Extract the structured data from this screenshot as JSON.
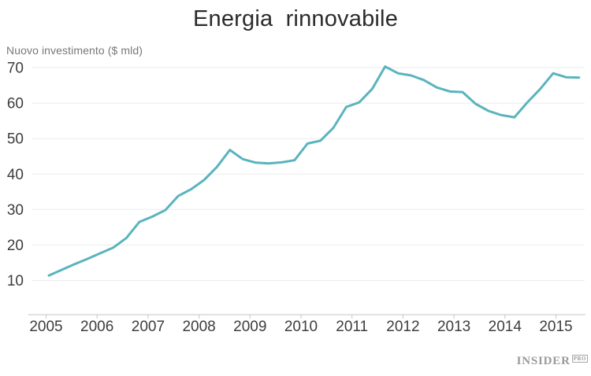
{
  "title": "Energia rinnovabile",
  "y_axis_label": "Nuovo investimento ($ mld)",
  "branding": {
    "name": "INSIDER",
    "suffix": "PRO"
  },
  "colors": {
    "line": "#5ab4bd",
    "grid": "#ebebeb",
    "axis": "#c6c6c6",
    "tick_text": "#3d3d3d",
    "title_text": "#2b2b2b",
    "subtitle_text": "#77787a",
    "logo_text": "#9a9a9a"
  },
  "chart_data": {
    "type": "line",
    "title": "Energia rinnovabile",
    "ylabel": "Nuovo investimento ($ mld)",
    "xlabel": "",
    "series_name": "Nuovo investimento ($ mld)",
    "legend": "none",
    "grid": "horizontal-only",
    "y_ticks": [
      10,
      20,
      30,
      40,
      50,
      60,
      70
    ],
    "ylim": [
      8,
      72
    ],
    "x_axis_tick_labels": [
      "2005",
      "2006",
      "2007",
      "2008",
      "2009",
      "2010",
      "2011",
      "2012",
      "2013",
      "2014",
      "2015"
    ],
    "x": [
      "2005 Q1",
      "2005 Q2",
      "2005 Q3",
      "2005 Q4",
      "2006 Q1",
      "2006 Q2",
      "2006 Q3",
      "2006 Q4",
      "2007 Q1",
      "2007 Q2",
      "2007 Q3",
      "2007 Q4",
      "2008 Q1",
      "2008 Q2",
      "2008 Q3",
      "2008 Q4",
      "2009 Q1",
      "2009 Q2",
      "2009 Q3",
      "2009 Q4",
      "2010 Q1",
      "2010 Q2",
      "2010 Q3",
      "2010 Q4",
      "2011 Q1",
      "2011 Q2",
      "2011 Q3",
      "2011 Q4",
      "2012 Q1",
      "2012 Q2",
      "2012 Q3",
      "2012 Q4",
      "2013 Q1",
      "2013 Q2",
      "2013 Q3",
      "2013 Q4",
      "2014 Q1",
      "2014 Q2",
      "2014 Q3",
      "2014 Q4",
      "2015 Q1",
      "2015 Q2"
    ],
    "values": [
      11.4,
      13.0,
      14.6,
      16.1,
      17.7,
      19.3,
      22.0,
      26.5,
      28.0,
      29.8,
      33.8,
      35.7,
      38.3,
      42.0,
      46.8,
      44.2,
      43.2,
      43.0,
      43.3,
      43.9,
      48.6,
      49.4,
      53.0,
      58.9,
      60.2,
      64.0,
      70.3,
      68.4,
      67.8,
      66.5,
      64.4,
      63.3,
      63.1,
      59.8,
      57.8,
      56.6,
      56.0,
      60.2,
      64.0,
      68.4,
      67.3,
      67.2
    ]
  }
}
